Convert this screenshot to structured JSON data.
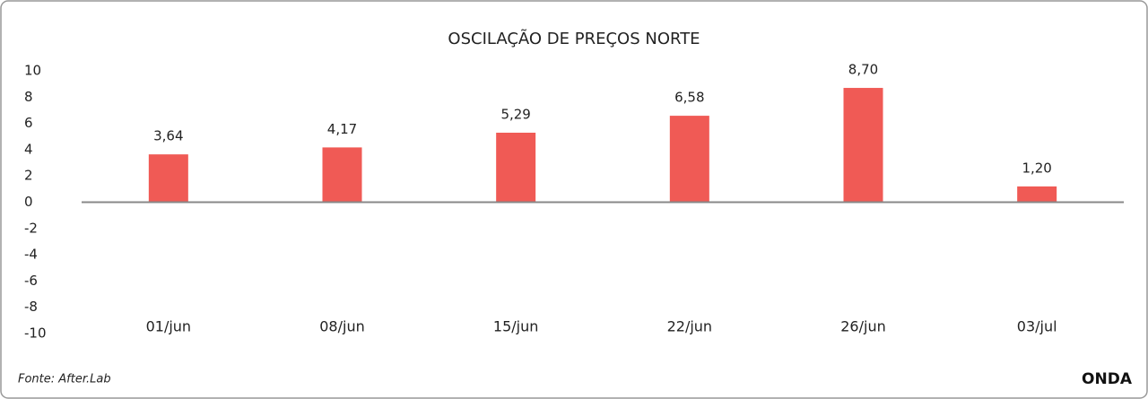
{
  "chart_data": {
    "type": "bar",
    "title": "OSCILAÇÃO DE PREÇOS NORTE",
    "categories": [
      "01/jun",
      "08/jun",
      "15/jun",
      "22/jun",
      "26/jun",
      "03/jul"
    ],
    "values": [
      3.64,
      4.17,
      5.29,
      6.58,
      8.7,
      1.2
    ],
    "value_labels": [
      "3,64",
      "4,17",
      "5,29",
      "6,58",
      "8,70",
      "1,20"
    ],
    "color": "#f05a55",
    "ylim": [
      -10,
      10
    ],
    "yticks": [
      -10,
      -8,
      -6,
      -4,
      -2,
      0,
      2,
      4,
      6,
      8,
      10
    ],
    "grid": false,
    "source": "Fonte: After.Lab",
    "brand": "ONDA"
  }
}
